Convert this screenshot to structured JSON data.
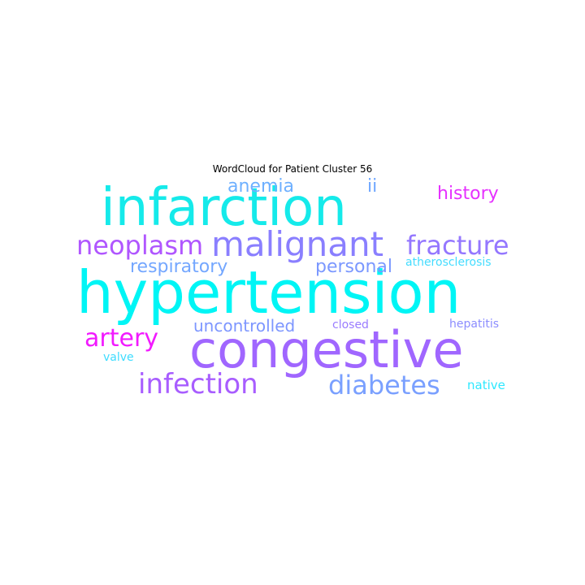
{
  "title": "WordCloud for Patient Cluster 56",
  "words": [
    {
      "text": "infarction",
      "color": "#15eaea"
    },
    {
      "text": "hypertension",
      "color": "#00f5f5"
    },
    {
      "text": "congestive",
      "color": "#a066ff"
    },
    {
      "text": "malignant",
      "color": "#8a7fff"
    },
    {
      "text": "neoplasm",
      "color": "#b056ff"
    },
    {
      "text": "fracture",
      "color": "#9477ff"
    },
    {
      "text": "infection",
      "color": "#a85dff"
    },
    {
      "text": "diabetes",
      "color": "#7aa0ff"
    },
    {
      "text": "artery",
      "color": "#f21aff"
    },
    {
      "text": "history",
      "color": "#e631ff"
    },
    {
      "text": "anemia",
      "color": "#6eb0ff"
    },
    {
      "text": "ii",
      "color": "#6ea6ff"
    },
    {
      "text": "respiratory",
      "color": "#74a7ff"
    },
    {
      "text": "personal",
      "color": "#7b98ff"
    },
    {
      "text": "atherosclerosis",
      "color": "#44dcff"
    },
    {
      "text": "uncontrolled",
      "color": "#7d96ff"
    },
    {
      "text": "closed",
      "color": "#9a7cff"
    },
    {
      "text": "hepatitis",
      "color": "#8c8dff"
    },
    {
      "text": "valve",
      "color": "#3ddcff"
    },
    {
      "text": "native",
      "color": "#2ee8ff"
    }
  ]
}
